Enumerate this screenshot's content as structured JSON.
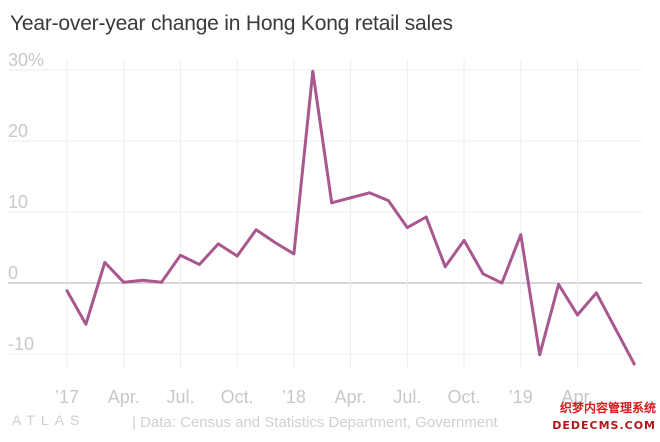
{
  "title": "Year-over-year change in Hong Kong retail sales",
  "footer": {
    "logo": "ATLAS",
    "source": "| Data: Census and Statistics Department, Government"
  },
  "watermark": {
    "line1": "织梦内容管理系统",
    "line2": "DEDECMS.COM"
  },
  "colors": {
    "line": "#a8578f",
    "grid": "#ececec",
    "zero": "#bdbdbd",
    "tick": "#c8c8c8"
  },
  "chart_data": {
    "type": "line",
    "title": "Year-over-year change in Hong Kong retail sales",
    "xlabel": "",
    "ylabel": "",
    "ylim": [
      -12,
      30
    ],
    "y_ticks": [
      {
        "value": 30,
        "label": "30%"
      },
      {
        "value": 20,
        "label": "20"
      },
      {
        "value": 10,
        "label": "10"
      },
      {
        "value": 0,
        "label": "0"
      },
      {
        "value": -10,
        "label": "-10"
      }
    ],
    "x_ticks": [
      {
        "index": 0,
        "label": "’17"
      },
      {
        "index": 3,
        "label": "Apr."
      },
      {
        "index": 6,
        "label": "Jul."
      },
      {
        "index": 9,
        "label": "Oct."
      },
      {
        "index": 12,
        "label": "’18"
      },
      {
        "index": 15,
        "label": "Apr."
      },
      {
        "index": 18,
        "label": "Jul."
      },
      {
        "index": 21,
        "label": "Oct."
      },
      {
        "index": 24,
        "label": "’19"
      },
      {
        "index": 27,
        "label": "Apr."
      }
    ],
    "x_range": [
      -0.9,
      30.2
    ],
    "grid": true,
    "series": [
      {
        "values": [
          -1.1,
          -5.8,
          2.9,
          0.1,
          0.4,
          0.1,
          3.9,
          2.6,
          5.5,
          3.8,
          7.5,
          5.7,
          4.1,
          29.8,
          11.3,
          12.0,
          12.7,
          11.6,
          7.8,
          9.3,
          2.3,
          6.0,
          1.3,
          0.0,
          6.8,
          -10.1,
          -0.2,
          -4.5,
          -1.4,
          -6.4,
          -11.4
        ]
      }
    ]
  }
}
